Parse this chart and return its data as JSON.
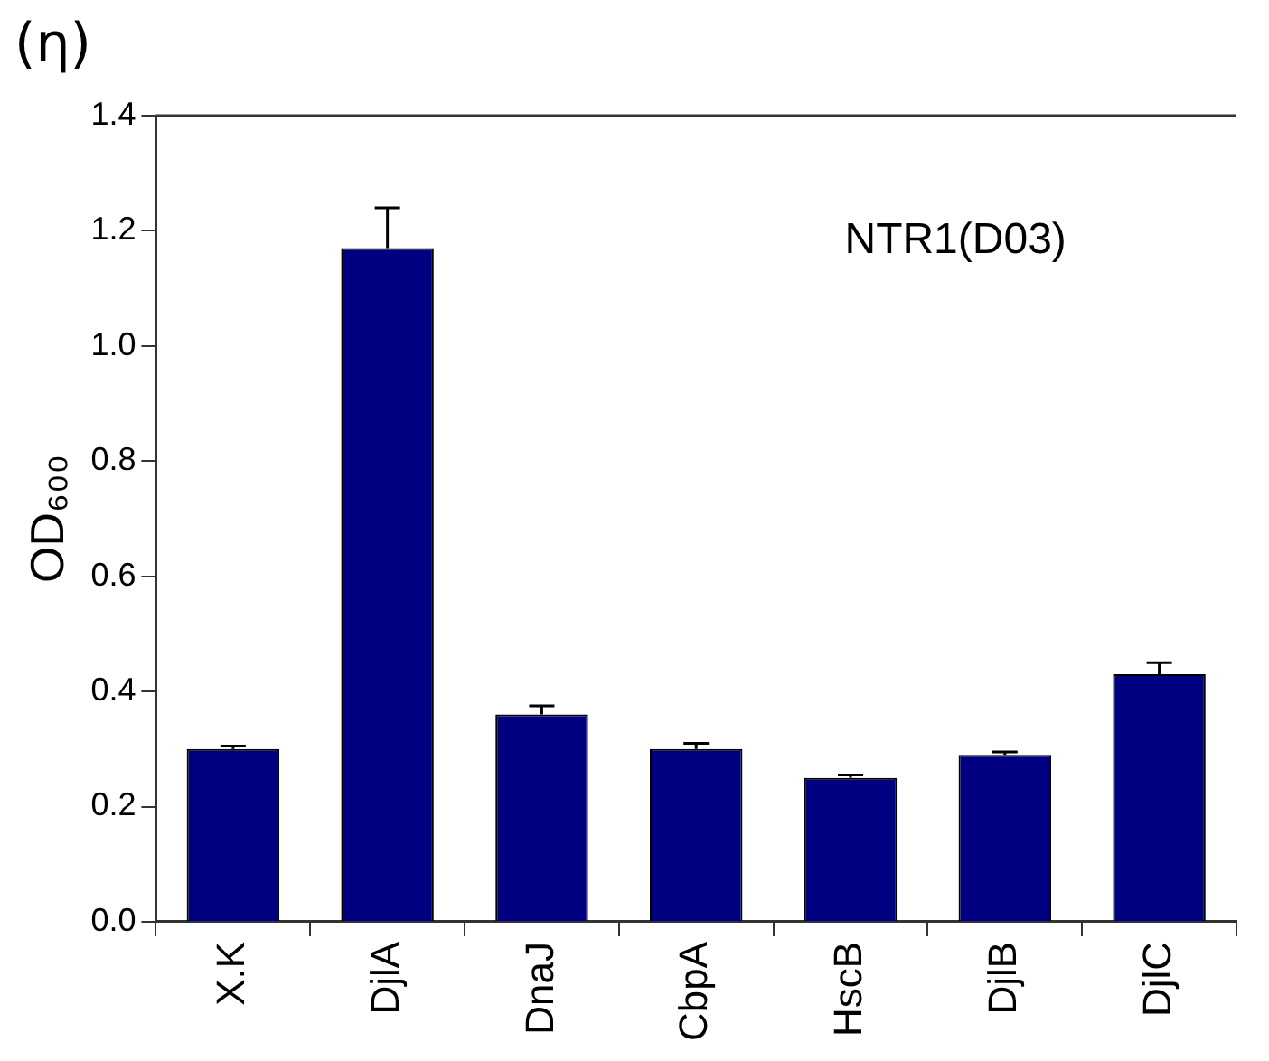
{
  "chart_data": {
    "type": "bar",
    "title": "(η)",
    "ylabel": "OD₆₀₀",
    "categories": [
      "X.K",
      "DjlA",
      "DnaJ",
      "CbpA",
      "HscB",
      "DjlB",
      "DjlC"
    ],
    "values": [
      0.3,
      1.17,
      0.36,
      0.3,
      0.25,
      0.29,
      0.43
    ],
    "errors": [
      0.005,
      0.07,
      0.015,
      0.01,
      0.005,
      0.005,
      0.02
    ],
    "color": "#000080",
    "ylim": [
      0,
      1.4
    ],
    "yticks": [
      {
        "value": 0,
        "label": "0.0"
      },
      0.2,
      0.4,
      0.6,
      0.8,
      {
        "value": 1,
        "label": "1.0"
      },
      1.2,
      1.4
    ],
    "annotations": [
      "NTR1(D03)"
    ],
    "grid": false,
    "legend": false
  }
}
